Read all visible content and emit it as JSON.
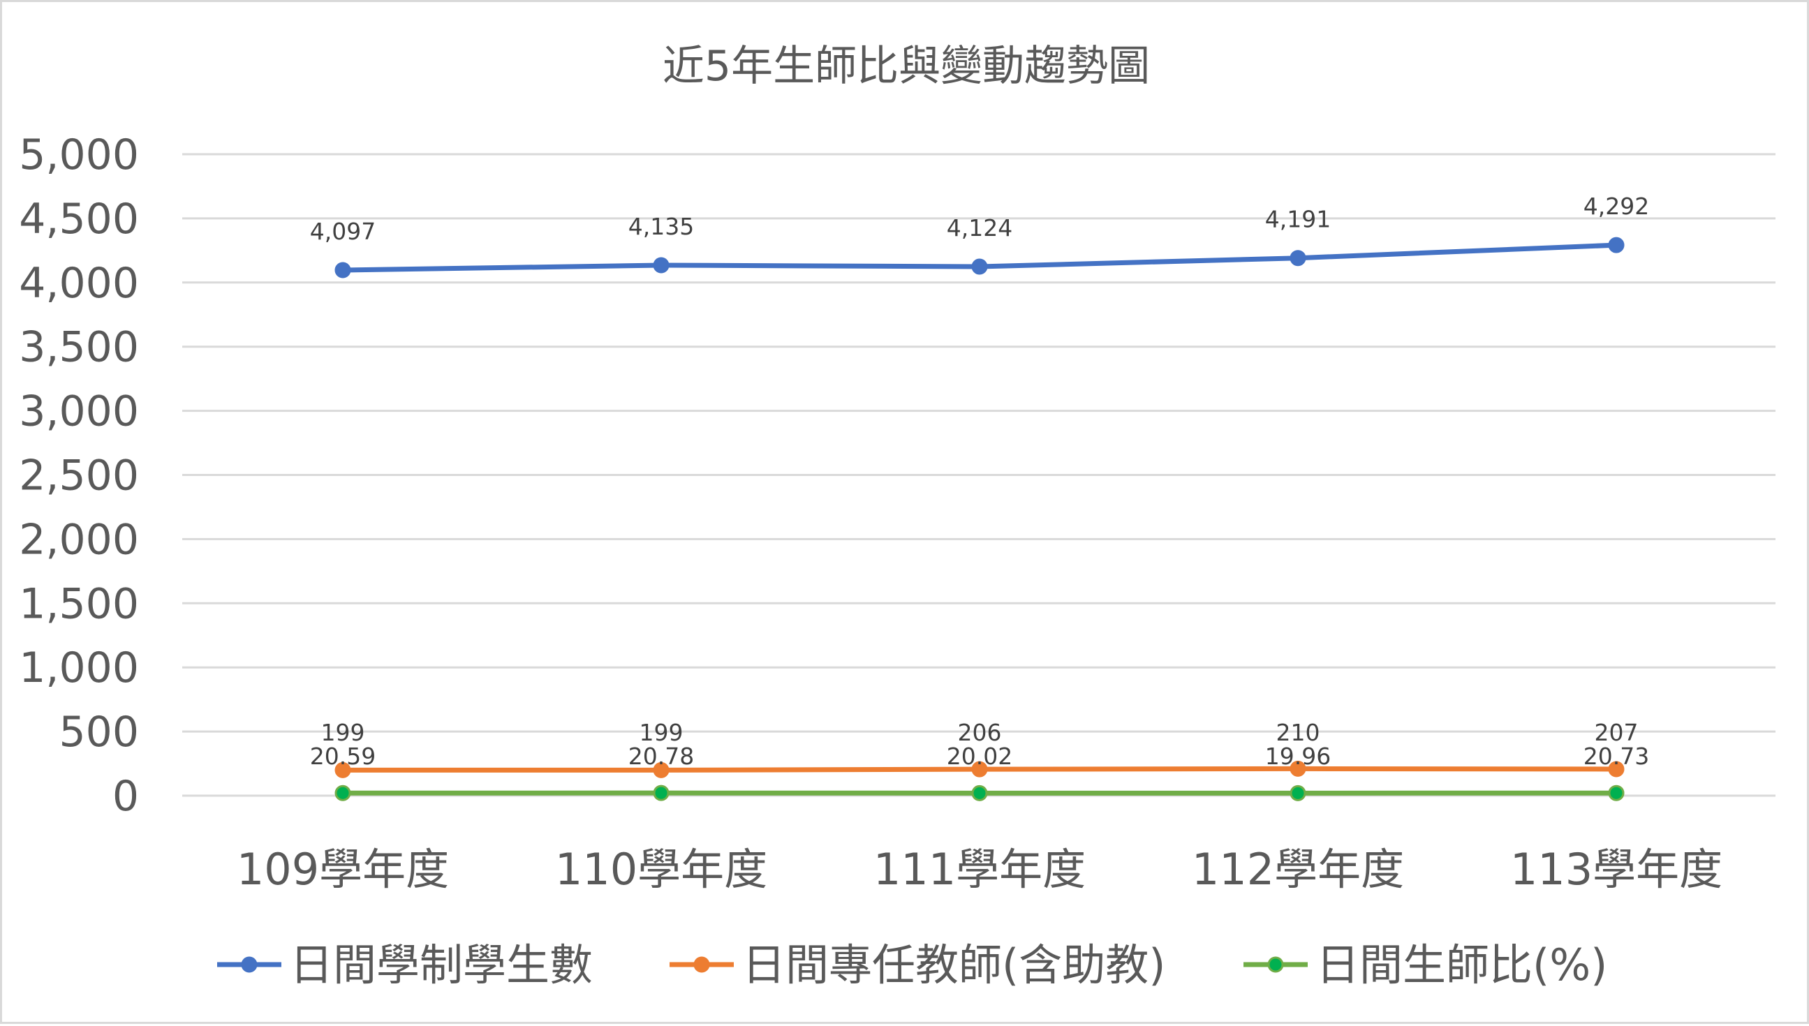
{
  "chart_data": {
    "type": "line",
    "title": "近5年生師比與變動趨勢圖",
    "categories": [
      "109學年度",
      "110學年度",
      "111學年度",
      "112學年度",
      "113學年度"
    ],
    "ylim": [
      0,
      5000
    ],
    "yticks": [
      0,
      500,
      1000,
      1500,
      2000,
      2500,
      3000,
      3500,
      4000,
      4500,
      5000
    ],
    "ytick_labels": [
      "0",
      "500",
      "1,000",
      "1,500",
      "2,000",
      "2,500",
      "3,000",
      "3,500",
      "4,000",
      "4,500",
      "5,000"
    ],
    "grid": true,
    "legend_position": "bottom",
    "series": [
      {
        "name": "日間學制學生數",
        "color": "#4472c4",
        "values": [
          4097,
          4135,
          4124,
          4191,
          4292
        ],
        "labels": [
          "4,097",
          "4,135",
          "4,124",
          "4,191",
          "4,292"
        ]
      },
      {
        "name": "日間專任教師(含助教)",
        "color": "#ed7d31",
        "values": [
          199,
          199,
          206,
          210,
          207
        ],
        "labels": [
          "199",
          "199",
          "206",
          "210",
          "207"
        ]
      },
      {
        "name": "日間生師比(%)",
        "color": "#70ad47",
        "marker_fill": "#00b050",
        "values": [
          20.59,
          20.78,
          20.02,
          19.96,
          20.73
        ],
        "labels": [
          "20.59",
          "20.78",
          "20.02",
          "19.96",
          "20.73"
        ]
      }
    ]
  }
}
